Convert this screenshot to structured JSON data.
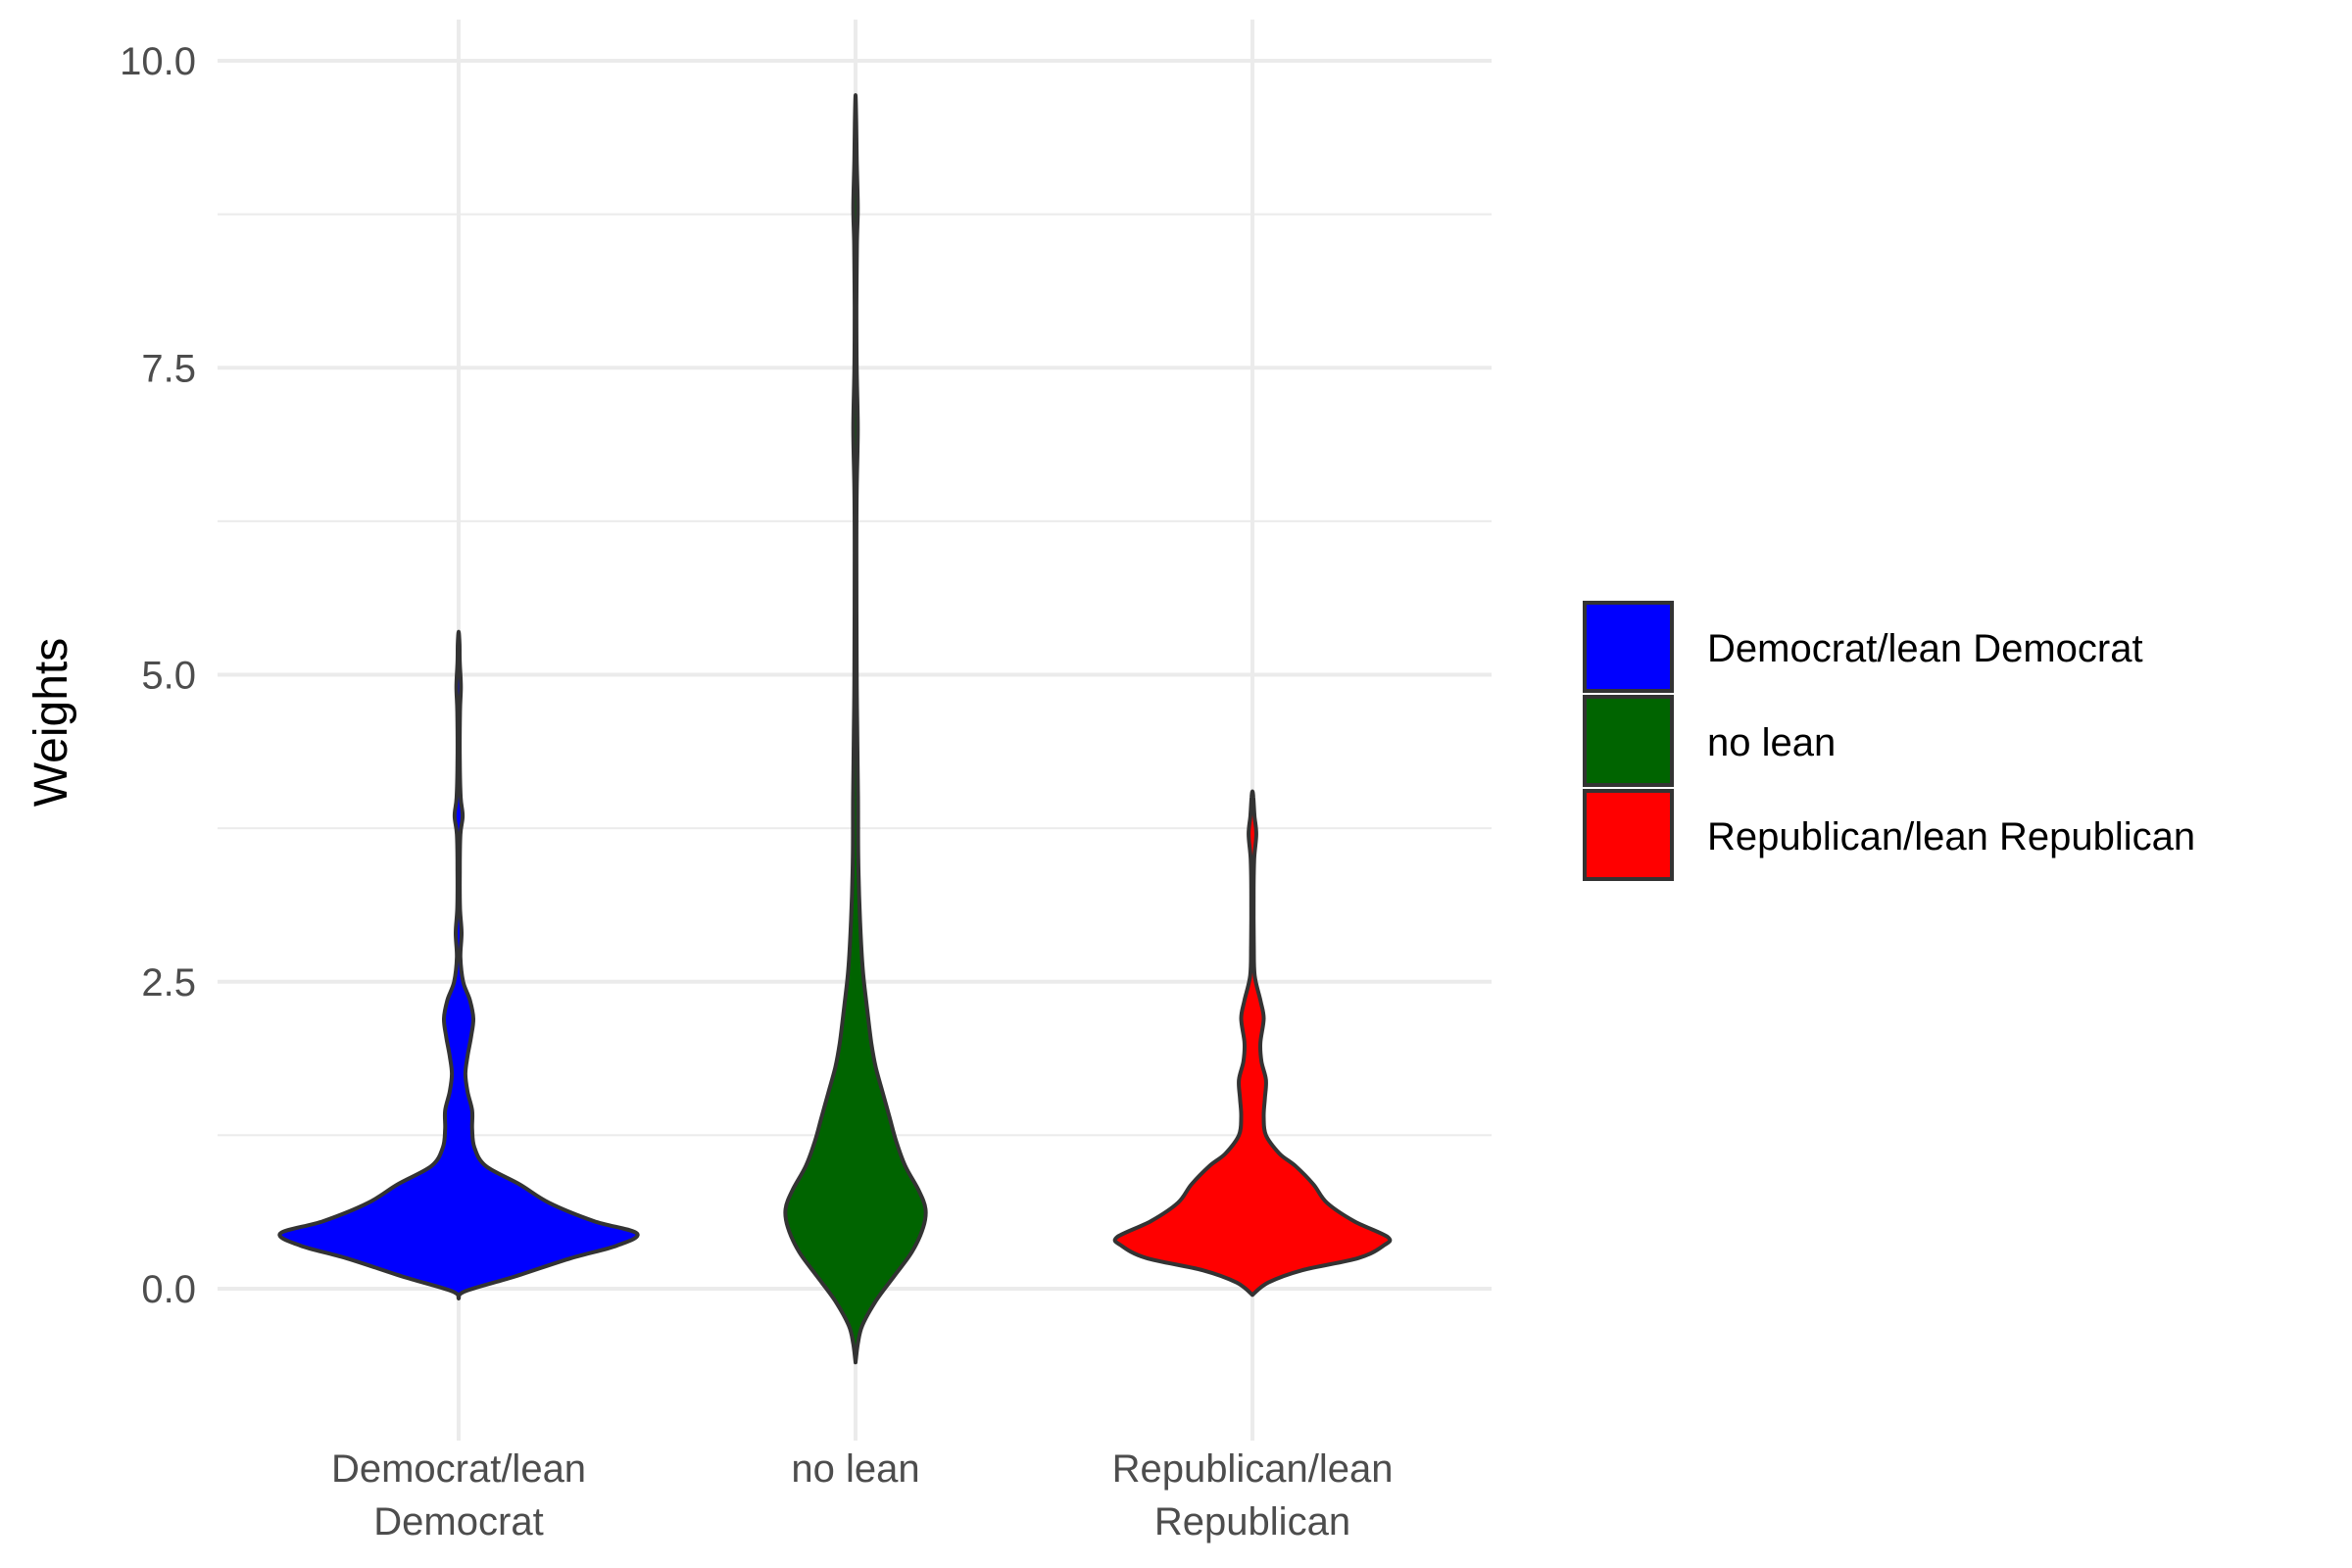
{
  "chart_data": {
    "type": "violin",
    "title": "",
    "xlabel": "",
    "ylabel": "Weights",
    "ylim": [
      -0.95,
      10.2
    ],
    "yticks": [
      0.0,
      2.5,
      5.0,
      7.5,
      10.0
    ],
    "ytick_labels": [
      "0.0",
      "2.5",
      "5.0",
      "7.5",
      "10.0"
    ],
    "grid": true,
    "categories": [
      {
        "label_lines": [
          "Democrat/lean",
          "Democrat"
        ]
      },
      {
        "label_lines": [
          "no lean"
        ]
      },
      {
        "label_lines": [
          "Republican/lean",
          "Republican"
        ]
      }
    ],
    "series": [
      {
        "name": "Democrat/lean Democrat",
        "color": "#0000FF",
        "profile": [
          [
            -0.08,
            0.0
          ],
          [
            -0.02,
            0.03
          ],
          [
            0.1,
            0.25
          ],
          [
            0.25,
            0.5
          ],
          [
            0.35,
            0.7
          ],
          [
            0.45,
            0.79
          ],
          [
            0.55,
            0.6
          ],
          [
            0.7,
            0.4
          ],
          [
            0.85,
            0.27
          ],
          [
            1.0,
            0.12
          ],
          [
            1.15,
            0.07
          ],
          [
            1.3,
            0.06
          ],
          [
            1.45,
            0.06
          ],
          [
            1.6,
            0.04
          ],
          [
            1.75,
            0.03
          ],
          [
            1.9,
            0.04
          ],
          [
            2.05,
            0.055
          ],
          [
            2.2,
            0.065
          ],
          [
            2.35,
            0.05
          ],
          [
            2.5,
            0.02
          ],
          [
            2.7,
            0.008
          ],
          [
            2.9,
            0.013
          ],
          [
            3.1,
            0.006
          ],
          [
            3.4,
            0.005
          ],
          [
            3.7,
            0.008
          ],
          [
            3.85,
            0.018
          ],
          [
            4.0,
            0.009
          ],
          [
            4.3,
            0.005
          ],
          [
            4.7,
            0.006
          ],
          [
            4.9,
            0.01
          ],
          [
            5.1,
            0.005
          ],
          [
            5.25,
            0.004
          ],
          [
            5.35,
            0.0
          ]
        ]
      },
      {
        "name": "no lean",
        "color": "#006400",
        "profile": [
          [
            -0.6,
            0.0
          ],
          [
            -0.45,
            0.01
          ],
          [
            -0.3,
            0.03
          ],
          [
            -0.1,
            0.09
          ],
          [
            0.1,
            0.17
          ],
          [
            0.3,
            0.25
          ],
          [
            0.5,
            0.3
          ],
          [
            0.65,
            0.31
          ],
          [
            0.8,
            0.28
          ],
          [
            1.0,
            0.22
          ],
          [
            1.2,
            0.18
          ],
          [
            1.4,
            0.15
          ],
          [
            1.6,
            0.12
          ],
          [
            1.8,
            0.09
          ],
          [
            2.0,
            0.07
          ],
          [
            2.3,
            0.05
          ],
          [
            2.6,
            0.032
          ],
          [
            3.0,
            0.02
          ],
          [
            3.5,
            0.012
          ],
          [
            4.0,
            0.011
          ],
          [
            4.5,
            0.008
          ],
          [
            5.0,
            0.005
          ],
          [
            6.0,
            0.004
          ],
          [
            6.5,
            0.005
          ],
          [
            7.0,
            0.01
          ],
          [
            7.5,
            0.005
          ],
          [
            8.0,
            0.004
          ],
          [
            8.5,
            0.006
          ],
          [
            8.8,
            0.01
          ],
          [
            9.2,
            0.005
          ],
          [
            9.5,
            0.003
          ],
          [
            9.72,
            0.0
          ]
        ]
      },
      {
        "name": "Republican/lean Republican",
        "color": "#FF0000",
        "profile": [
          [
            -0.05,
            0.0
          ],
          [
            0.05,
            0.07
          ],
          [
            0.15,
            0.22
          ],
          [
            0.25,
            0.47
          ],
          [
            0.35,
            0.58
          ],
          [
            0.42,
            0.6
          ],
          [
            0.55,
            0.45
          ],
          [
            0.7,
            0.33
          ],
          [
            0.85,
            0.27
          ],
          [
            1.0,
            0.19
          ],
          [
            1.1,
            0.12
          ],
          [
            1.25,
            0.06
          ],
          [
            1.4,
            0.05
          ],
          [
            1.55,
            0.055
          ],
          [
            1.7,
            0.06
          ],
          [
            1.85,
            0.04
          ],
          [
            2.0,
            0.035
          ],
          [
            2.2,
            0.05
          ],
          [
            2.35,
            0.035
          ],
          [
            2.55,
            0.01
          ],
          [
            2.8,
            0.006
          ],
          [
            3.2,
            0.005
          ],
          [
            3.5,
            0.008
          ],
          [
            3.7,
            0.017
          ],
          [
            3.85,
            0.009
          ],
          [
            4.0,
            0.004
          ],
          [
            4.05,
            0.0
          ]
        ]
      }
    ],
    "legend": {
      "placement": "right",
      "entries": [
        "Democrat/lean Democrat",
        "no lean",
        "Republican/lean Republican"
      ]
    }
  }
}
